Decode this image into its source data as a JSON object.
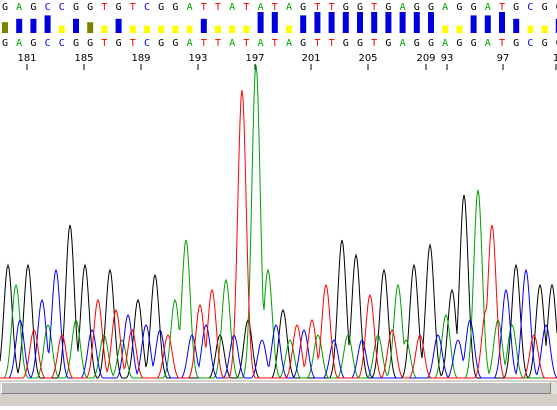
{
  "colors": {
    "A": "#00a000",
    "C": "#0000ff",
    "G": "#000000",
    "T": "#ff0000",
    "qv_high": "#0000dd",
    "qv_mid": "#808000",
    "qv_low": "#ffff00"
  },
  "basecalls": {
    "top": [
      "G",
      "A",
      "G",
      "C",
      "C",
      "G",
      "G",
      "T",
      "G",
      "T",
      "C",
      "G",
      "G",
      "A",
      "T",
      "T",
      "A",
      "T",
      "A",
      "T",
      "A",
      "G",
      "T",
      "T",
      "G",
      "G",
      "T",
      "G",
      "A",
      "G",
      "G",
      "A",
      "G",
      "G",
      "A",
      "T",
      "G",
      "C",
      "G",
      "G"
    ],
    "bottom": [
      "G",
      "A",
      "G",
      "C",
      "C",
      "G",
      "G",
      "T",
      "G",
      "T",
      "C",
      "G",
      "G",
      "A",
      "T",
      "T",
      "A",
      "T",
      "A",
      "T",
      "A",
      "G",
      "T",
      "T",
      "G",
      "G",
      "T",
      "G",
      "A",
      "G",
      "G",
      "A",
      "G",
      "G",
      "A",
      "T",
      "G",
      "C",
      "G",
      "G"
    ]
  },
  "positions": [
    "181",
    "185",
    "189",
    "193",
    "197",
    "201",
    "205",
    "209",
    "93",
    "97",
    "1"
  ],
  "quality": [
    2,
    3,
    3,
    4,
    1,
    3,
    2,
    1,
    3,
    1,
    1,
    1,
    1,
    1,
    3,
    1,
    1,
    1,
    5,
    5,
    1,
    4,
    5,
    5,
    5,
    5,
    5,
    5,
    5,
    5,
    5,
    1,
    1,
    4,
    4,
    5,
    3,
    1,
    1,
    3
  ]
}
